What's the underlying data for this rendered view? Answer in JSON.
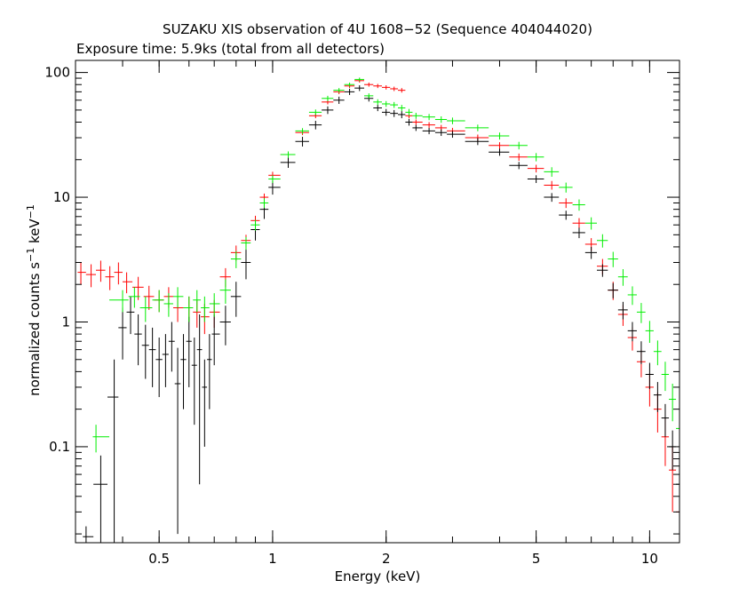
{
  "chart_data": {
    "type": "scatter",
    "title": "SUZAKU XIS observation of 4U 1608−52 (Sequence 404044020)",
    "subtitle": "Exposure time: 5.9ks (total from all detectors)",
    "xlabel": "Energy (keV)",
    "ylabel_main": "normalized counts s",
    "ylabel_exp1": "−1",
    "ylabel_mid": " keV",
    "ylabel_exp2": "−1",
    "xscale": "log",
    "yscale": "log",
    "xlim": [
      0.3,
      12
    ],
    "ylim": [
      0.017,
      125
    ],
    "x_ticks": [
      {
        "value": 0.5,
        "label": "0.5"
      },
      {
        "value": 1,
        "label": "1"
      },
      {
        "value": 2,
        "label": "2"
      },
      {
        "value": 5,
        "label": "5"
      },
      {
        "value": 10,
        "label": "10"
      }
    ],
    "y_ticks": [
      {
        "value": 0.1,
        "label": "0.1"
      },
      {
        "value": 1,
        "label": "1"
      },
      {
        "value": 10,
        "label": "10"
      },
      {
        "value": 100,
        "label": "100"
      }
    ],
    "series": [
      {
        "color": "#ff0000",
        "x": [
          0.31,
          0.33,
          0.35,
          0.37,
          0.39,
          0.41,
          0.44,
          0.47,
          0.5,
          0.53,
          0.56,
          0.6,
          0.63,
          0.66,
          0.7,
          0.75,
          0.8,
          0.85,
          0.9,
          0.95,
          1.0,
          1.1,
          1.2,
          1.3,
          1.4,
          1.5,
          1.6,
          1.7,
          1.8,
          1.9,
          2.0,
          2.1,
          2.2,
          2.3,
          2.4,
          2.6,
          2.8,
          3.0,
          3.5,
          4.0,
          4.5,
          5.0,
          5.5,
          6.0,
          6.5,
          7.0,
          7.5,
          8.0,
          8.5,
          9.0,
          9.5,
          10.0,
          10.5,
          11.0,
          11.5,
          12.0
        ],
        "y": [
          2.5,
          2.4,
          2.6,
          2.3,
          2.5,
          2.1,
          1.9,
          1.6,
          1.5,
          1.6,
          1.3,
          1.3,
          1.2,
          1.1,
          1.2,
          2.3,
          3.6,
          4.5,
          6.5,
          10,
          15,
          22,
          33,
          45,
          58,
          70,
          78,
          86,
          80,
          78,
          76,
          74,
          72,
          45,
          40,
          38,
          36,
          34,
          30,
          26,
          21,
          17,
          12.5,
          9,
          6.2,
          4.2,
          2.8,
          1.8,
          1.15,
          0.75,
          0.48,
          0.3,
          0.2,
          0.12,
          0.065,
          0.03
        ],
        "err": [
          0.5,
          0.5,
          0.5,
          0.5,
          0.5,
          0.4,
          0.4,
          0.35,
          0.3,
          0.3,
          0.3,
          0.3,
          0.3,
          0.3,
          0.3,
          0.4,
          0.5,
          0.5,
          0.6,
          0.7,
          1,
          1.2,
          1.5,
          2,
          2.5,
          3,
          3,
          3,
          3,
          3,
          3,
          3,
          3,
          2,
          2,
          2,
          2,
          2,
          1.8,
          1.6,
          1.4,
          1.2,
          1,
          0.8,
          0.6,
          0.5,
          0.4,
          0.3,
          0.22,
          0.16,
          0.12,
          0.09,
          0.07,
          0.05,
          0.035,
          0.02
        ]
      },
      {
        "color": "#000000",
        "x": [
          0.32,
          0.35,
          0.38,
          0.4,
          0.42,
          0.44,
          0.46,
          0.48,
          0.5,
          0.52,
          0.54,
          0.56,
          0.58,
          0.6,
          0.62,
          0.64,
          0.66,
          0.68,
          0.7,
          0.75,
          0.8,
          0.85,
          0.9,
          0.95,
          1.0,
          1.1,
          1.2,
          1.3,
          1.4,
          1.5,
          1.6,
          1.7,
          1.8,
          1.9,
          2.0,
          2.1,
          2.2,
          2.3,
          2.4,
          2.6,
          2.8,
          3.0,
          3.5,
          4.0,
          4.5,
          5.0,
          5.5,
          6.0,
          6.5,
          7.0,
          7.5,
          8.0,
          8.5,
          9.0,
          9.5,
          10.0,
          10.5,
          11.0,
          11.5,
          12.0
        ],
        "y": [
          0.019,
          0.05,
          0.25,
          0.9,
          1.2,
          0.8,
          0.65,
          0.6,
          0.5,
          0.55,
          0.7,
          0.32,
          0.5,
          0.7,
          0.45,
          0.6,
          0.3,
          0.5,
          0.8,
          1.0,
          1.6,
          3.0,
          5.5,
          8,
          12,
          19,
          28,
          38,
          50,
          60,
          70,
          75,
          62,
          52,
          48,
          47,
          46,
          40,
          36,
          34,
          33,
          32,
          28,
          23,
          18,
          14,
          10,
          7.2,
          5.2,
          3.6,
          2.6,
          1.8,
          1.25,
          0.85,
          0.58,
          0.38,
          0.26,
          0.17,
          0.1,
          0.05
        ],
        "err": [
          0.004,
          0.035,
          0.25,
          0.4,
          0.4,
          0.35,
          0.3,
          0.3,
          0.25,
          0.25,
          0.3,
          0.3,
          0.3,
          0.4,
          0.3,
          0.55,
          0.2,
          0.3,
          0.35,
          0.35,
          0.5,
          0.8,
          1,
          1.3,
          1.5,
          1.8,
          2.5,
          3,
          3.5,
          4,
          4,
          4,
          3.5,
          3,
          3,
          3,
          3,
          2.5,
          2,
          2,
          2,
          2,
          1.8,
          1.5,
          1.2,
          1,
          0.8,
          0.6,
          0.5,
          0.4,
          0.3,
          0.25,
          0.2,
          0.15,
          0.12,
          0.09,
          0.07,
          0.05,
          0.035,
          0.02
        ]
      },
      {
        "color": "#00ee00",
        "x": [
          0.34,
          0.4,
          0.43,
          0.46,
          0.5,
          0.53,
          0.56,
          0.6,
          0.63,
          0.66,
          0.7,
          0.75,
          0.8,
          0.85,
          0.9,
          0.95,
          1.0,
          1.1,
          1.2,
          1.3,
          1.4,
          1.5,
          1.6,
          1.7,
          1.8,
          1.9,
          2.0,
          2.1,
          2.2,
          2.3,
          2.4,
          2.6,
          2.8,
          3.0,
          3.5,
          4.0,
          4.5,
          5.0,
          5.5,
          6.0,
          6.5,
          7.0,
          7.5,
          8.0,
          8.5,
          9.0,
          9.5,
          10.0,
          10.5,
          11.0,
          11.5,
          12.0
        ],
        "y": [
          0.12,
          1.5,
          1.6,
          1.3,
          1.5,
          1.4,
          1.6,
          1.3,
          1.5,
          1.3,
          1.4,
          1.8,
          3.2,
          4.3,
          6,
          9,
          14,
          22,
          34,
          48,
          62,
          72,
          80,
          88,
          65,
          58,
          56,
          55,
          52,
          48,
          45,
          44,
          42,
          41,
          36,
          31,
          26,
          21,
          16,
          12,
          8.7,
          6.2,
          4.5,
          3.2,
          2.3,
          1.65,
          1.2,
          0.85,
          0.58,
          0.38,
          0.24,
          0.14
        ],
        "err": [
          0.03,
          0.3,
          0.3,
          0.3,
          0.3,
          0.3,
          0.3,
          0.3,
          0.3,
          0.3,
          0.3,
          0.4,
          0.5,
          0.5,
          0.6,
          0.8,
          1,
          1.3,
          1.8,
          2.5,
          3,
          3,
          3,
          3,
          3,
          3,
          3,
          3,
          3,
          3,
          2.5,
          2.5,
          2.5,
          2.5,
          2.2,
          2,
          1.8,
          1.6,
          1.4,
          1.1,
          0.9,
          0.7,
          0.55,
          0.45,
          0.35,
          0.28,
          0.22,
          0.17,
          0.13,
          0.1,
          0.08,
          0.06
        ]
      }
    ],
    "grid": false,
    "legend": "none"
  }
}
